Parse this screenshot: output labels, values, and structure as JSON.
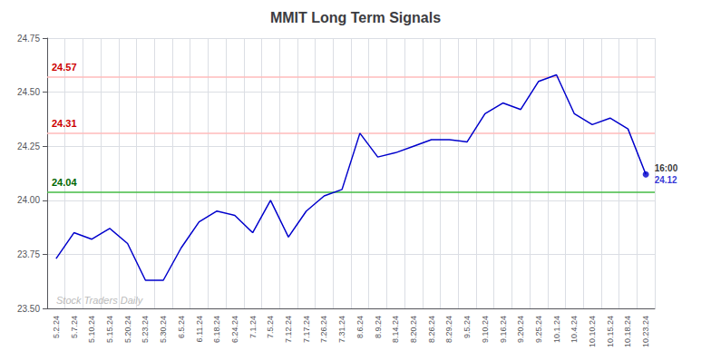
{
  "chart_data": {
    "type": "line",
    "title": "MMIT Long Term Signals",
    "categories": [
      "5.2.24",
      "5.7.24",
      "5.10.24",
      "5.15.24",
      "5.20.24",
      "5.23.24",
      "5.30.24",
      "6.5.24",
      "6.11.24",
      "6.18.24",
      "6.24.24",
      "7.1.24",
      "7.5.24",
      "7.12.24",
      "7.17.24",
      "7.26.24",
      "7.31.24",
      "8.6.24",
      "8.9.24",
      "8.14.24",
      "8.20.24",
      "8.26.24",
      "8.29.24",
      "9.5.24",
      "9.10.24",
      "9.16.24",
      "9.20.24",
      "9.25.24",
      "10.1.24",
      "10.4.24",
      "10.10.24",
      "10.15.24",
      "10.18.24",
      "10.23.24"
    ],
    "values": [
      23.73,
      23.85,
      23.82,
      23.87,
      23.8,
      23.63,
      23.63,
      23.78,
      23.9,
      23.95,
      23.93,
      23.85,
      24.0,
      23.83,
      23.95,
      24.02,
      24.05,
      24.31,
      24.2,
      24.22,
      24.25,
      24.28,
      24.28,
      24.27,
      24.4,
      24.45,
      24.42,
      24.55,
      24.58,
      24.4,
      24.35,
      24.38,
      24.33,
      24.12
    ],
    "color": "#0000cc",
    "ylim": [
      23.5,
      24.75
    ],
    "yticks": [
      {
        "value": 23.5,
        "label": "23.50"
      },
      23.75,
      {
        "value": 24.0,
        "label": "24.00"
      },
      24.25,
      {
        "value": 24.5,
        "label": "24.50"
      },
      24.75
    ],
    "grid": true,
    "hlines": [
      {
        "value": 24.57,
        "color": "#ffbbbb",
        "label": "24.57",
        "label_color": "#cc0000"
      },
      {
        "value": 24.31,
        "color": "#ffbbbb",
        "label": "24.31",
        "label_color": "#cc0000"
      },
      {
        "value": 24.04,
        "color": "#44bb44",
        "label": "24.04",
        "label_color": "#006600"
      }
    ],
    "last_point": {
      "marker": "circle",
      "color": "#0000cc",
      "labels": [
        {
          "text": "16:00",
          "color": "#000000"
        },
        {
          "text": "24.12",
          "color": "#0000cc"
        }
      ]
    },
    "watermark": {
      "text": "Stock Traders Daily",
      "color": "#bbbbbb"
    }
  }
}
